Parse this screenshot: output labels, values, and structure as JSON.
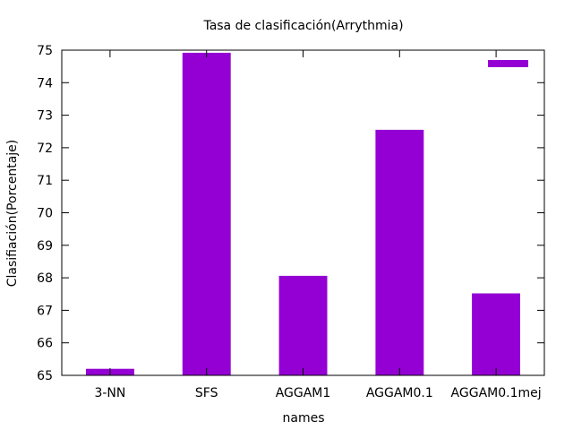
{
  "chart_data": {
    "type": "bar",
    "title": "Tasa de clasificación(Arrythmia)",
    "xlabel": "names",
    "ylabel": "Clasifiación(Porcentaje)",
    "ylim": [
      65,
      75
    ],
    "yticks": [
      65,
      66,
      67,
      68,
      69,
      70,
      71,
      72,
      73,
      74,
      75
    ],
    "categories": [
      "3-NN",
      "SFS",
      "AGGAM1",
      "AGGAM0.1",
      "AGGAM0.1mej"
    ],
    "values": [
      65.2,
      74.92,
      68.06,
      72.55,
      67.52
    ],
    "legend": {
      "position": "top-right",
      "entries": [
        {
          "label": "",
          "color": "#9400d3"
        }
      ]
    },
    "bar_color": "#9400d3",
    "grid": false
  }
}
